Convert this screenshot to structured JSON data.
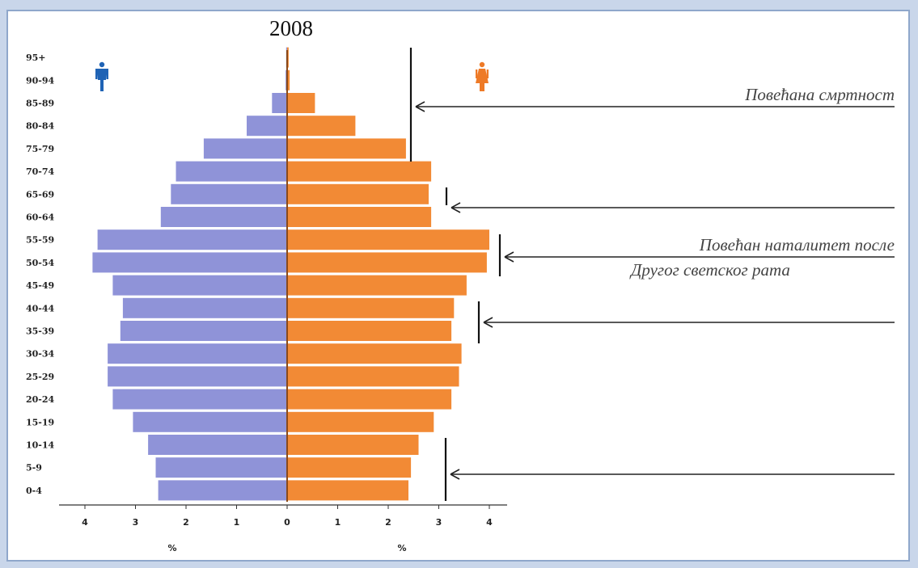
{
  "chart_data": {
    "type": "bar",
    "title": "2008",
    "xlabel_left": "%",
    "xlabel_right": "%",
    "categories": [
      "0-4",
      "5-9",
      "10-14",
      "15-19",
      "20-24",
      "25-29",
      "30-34",
      "35-39",
      "40-44",
      "45-49",
      "50-54",
      "55-59",
      "60-64",
      "65-69",
      "70-74",
      "75-79",
      "80-84",
      "85-89",
      "90-94",
      "95+"
    ],
    "series": [
      {
        "name": "",
        "side": "left",
        "color": "#8f93d8",
        "values": [
          2.55,
          2.6,
          2.75,
          3.05,
          3.45,
          3.55,
          3.55,
          3.3,
          3.25,
          3.45,
          3.85,
          3.75,
          2.5,
          2.3,
          2.2,
          1.65,
          0.8,
          0.3,
          0.03,
          0.02
        ]
      },
      {
        "name": "",
        "side": "right",
        "color": "#f28a35",
        "values": [
          2.4,
          2.45,
          2.6,
          2.9,
          3.25,
          3.4,
          3.45,
          3.25,
          3.3,
          3.55,
          3.95,
          4.0,
          2.85,
          2.8,
          2.85,
          2.35,
          1.35,
          0.55,
          0.05,
          0.03
        ]
      }
    ],
    "xlim": [
      0,
      4
    ],
    "xticks": [
      4,
      3,
      2,
      1,
      0,
      1,
      2,
      3,
      4
    ],
    "icons": {
      "left": "male-icon",
      "right": "female-icon"
    },
    "annotations": [
      {
        "text": "Повећана смртност",
        "bracket_from": "75-79",
        "bracket_to": "95+",
        "pointer_at": "85-89"
      },
      {
        "text": "",
        "bracket_from": "60-64",
        "bracket_to": "65-69",
        "pointer_at": "60-64"
      },
      {
        "text": "Повећан наталитет после\nДругог светског рата",
        "bracket_from": "50-54",
        "bracket_to": "55-59",
        "pointer_at": "50-54"
      },
      {
        "text": "",
        "bracket_from": "35-39",
        "bracket_to": "40-44",
        "pointer_at": "35-39"
      },
      {
        "text": "",
        "bracket_from": "0-4",
        "bracket_to": "10-14",
        "pointer_at": "5-9"
      }
    ],
    "colors": {
      "male_icon": "#1f63b5",
      "female_icon": "#ee7a27",
      "axis": "#333333",
      "center_line": "#8a4a1a",
      "frame_bg": "#c9d6ea",
      "frame_border": "#8fa7cb"
    }
  }
}
